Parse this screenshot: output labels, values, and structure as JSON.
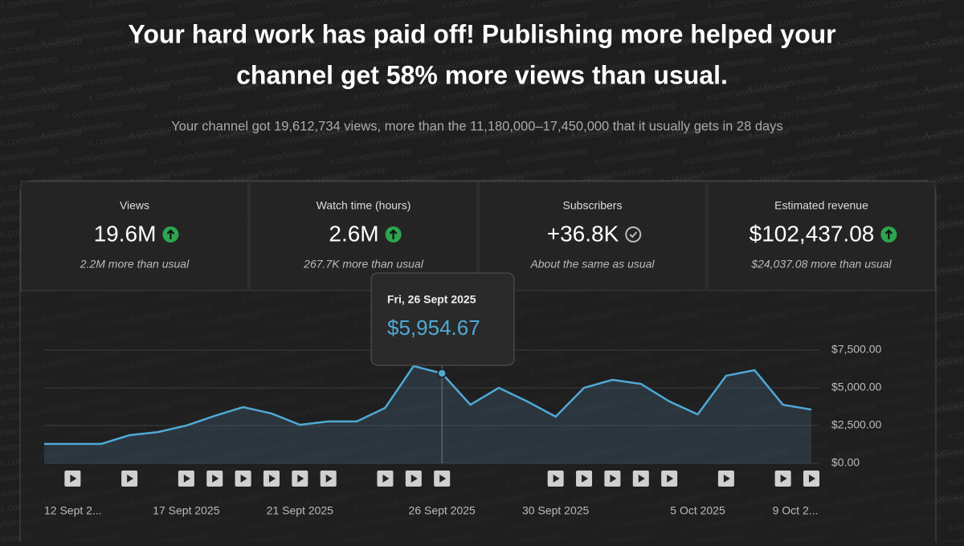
{
  "header": {
    "title_lines": [
      "Your hard work has paid off! Publishing more helped your",
      "channel get 58% more views than usual."
    ],
    "subtitle": "Your channel got 19,612,734 views, more than the 11,180,000–17,450,000 that it usually gets in 28 days"
  },
  "watermark": "x.com/workwdeeep",
  "metrics": [
    {
      "label": "Views",
      "value": "19.6M",
      "note": "2.2M more than usual"
    },
    {
      "label": "Watch time (hours)",
      "value": "2.6M",
      "note": "267.7K more than usual"
    },
    {
      "label": "Subscribers",
      "value": "+36.8K",
      "note": "About the same as usual"
    },
    {
      "label": "Estimated revenue",
      "value": "$102,437.08",
      "note": "$24,037.08 more than usual"
    }
  ],
  "tooltip": {
    "date": "Fri, 26 Sept 2025",
    "value": "$5,954.67"
  },
  "chart_data": {
    "type": "line",
    "categories": [
      "12 Sept 2...",
      null,
      null,
      null,
      null,
      "17 Sept 2025",
      null,
      null,
      null,
      "21 Sept 2025",
      null,
      null,
      null,
      null,
      "26 Sept 2025",
      null,
      null,
      null,
      "30 Sept 2025",
      null,
      null,
      null,
      null,
      "5 Oct 2025",
      null,
      null,
      null,
      "9 Oct 2..."
    ],
    "series": [
      {
        "name": "Estimated revenue",
        "color": "#4fa9d6",
        "values": [
          1280,
          1280,
          1280,
          1860,
          2070,
          2500,
          3140,
          3720,
          3300,
          2550,
          2770,
          2770,
          3670,
          6440,
          5954.67,
          3880,
          5000,
          4100,
          3090,
          5000,
          5530,
          5260,
          4100,
          3240,
          5800,
          6170,
          3880,
          3560
        ]
      }
    ],
    "ylim": [
      0,
      7500
    ],
    "yticks": [
      {
        "value": 0,
        "label": "$0.00"
      },
      {
        "value": 2500,
        "label": "$2,500.00"
      },
      {
        "value": 5000,
        "label": "$5,000.00"
      },
      {
        "value": 7500,
        "label": "$7,500.00"
      }
    ],
    "grid": true
  }
}
